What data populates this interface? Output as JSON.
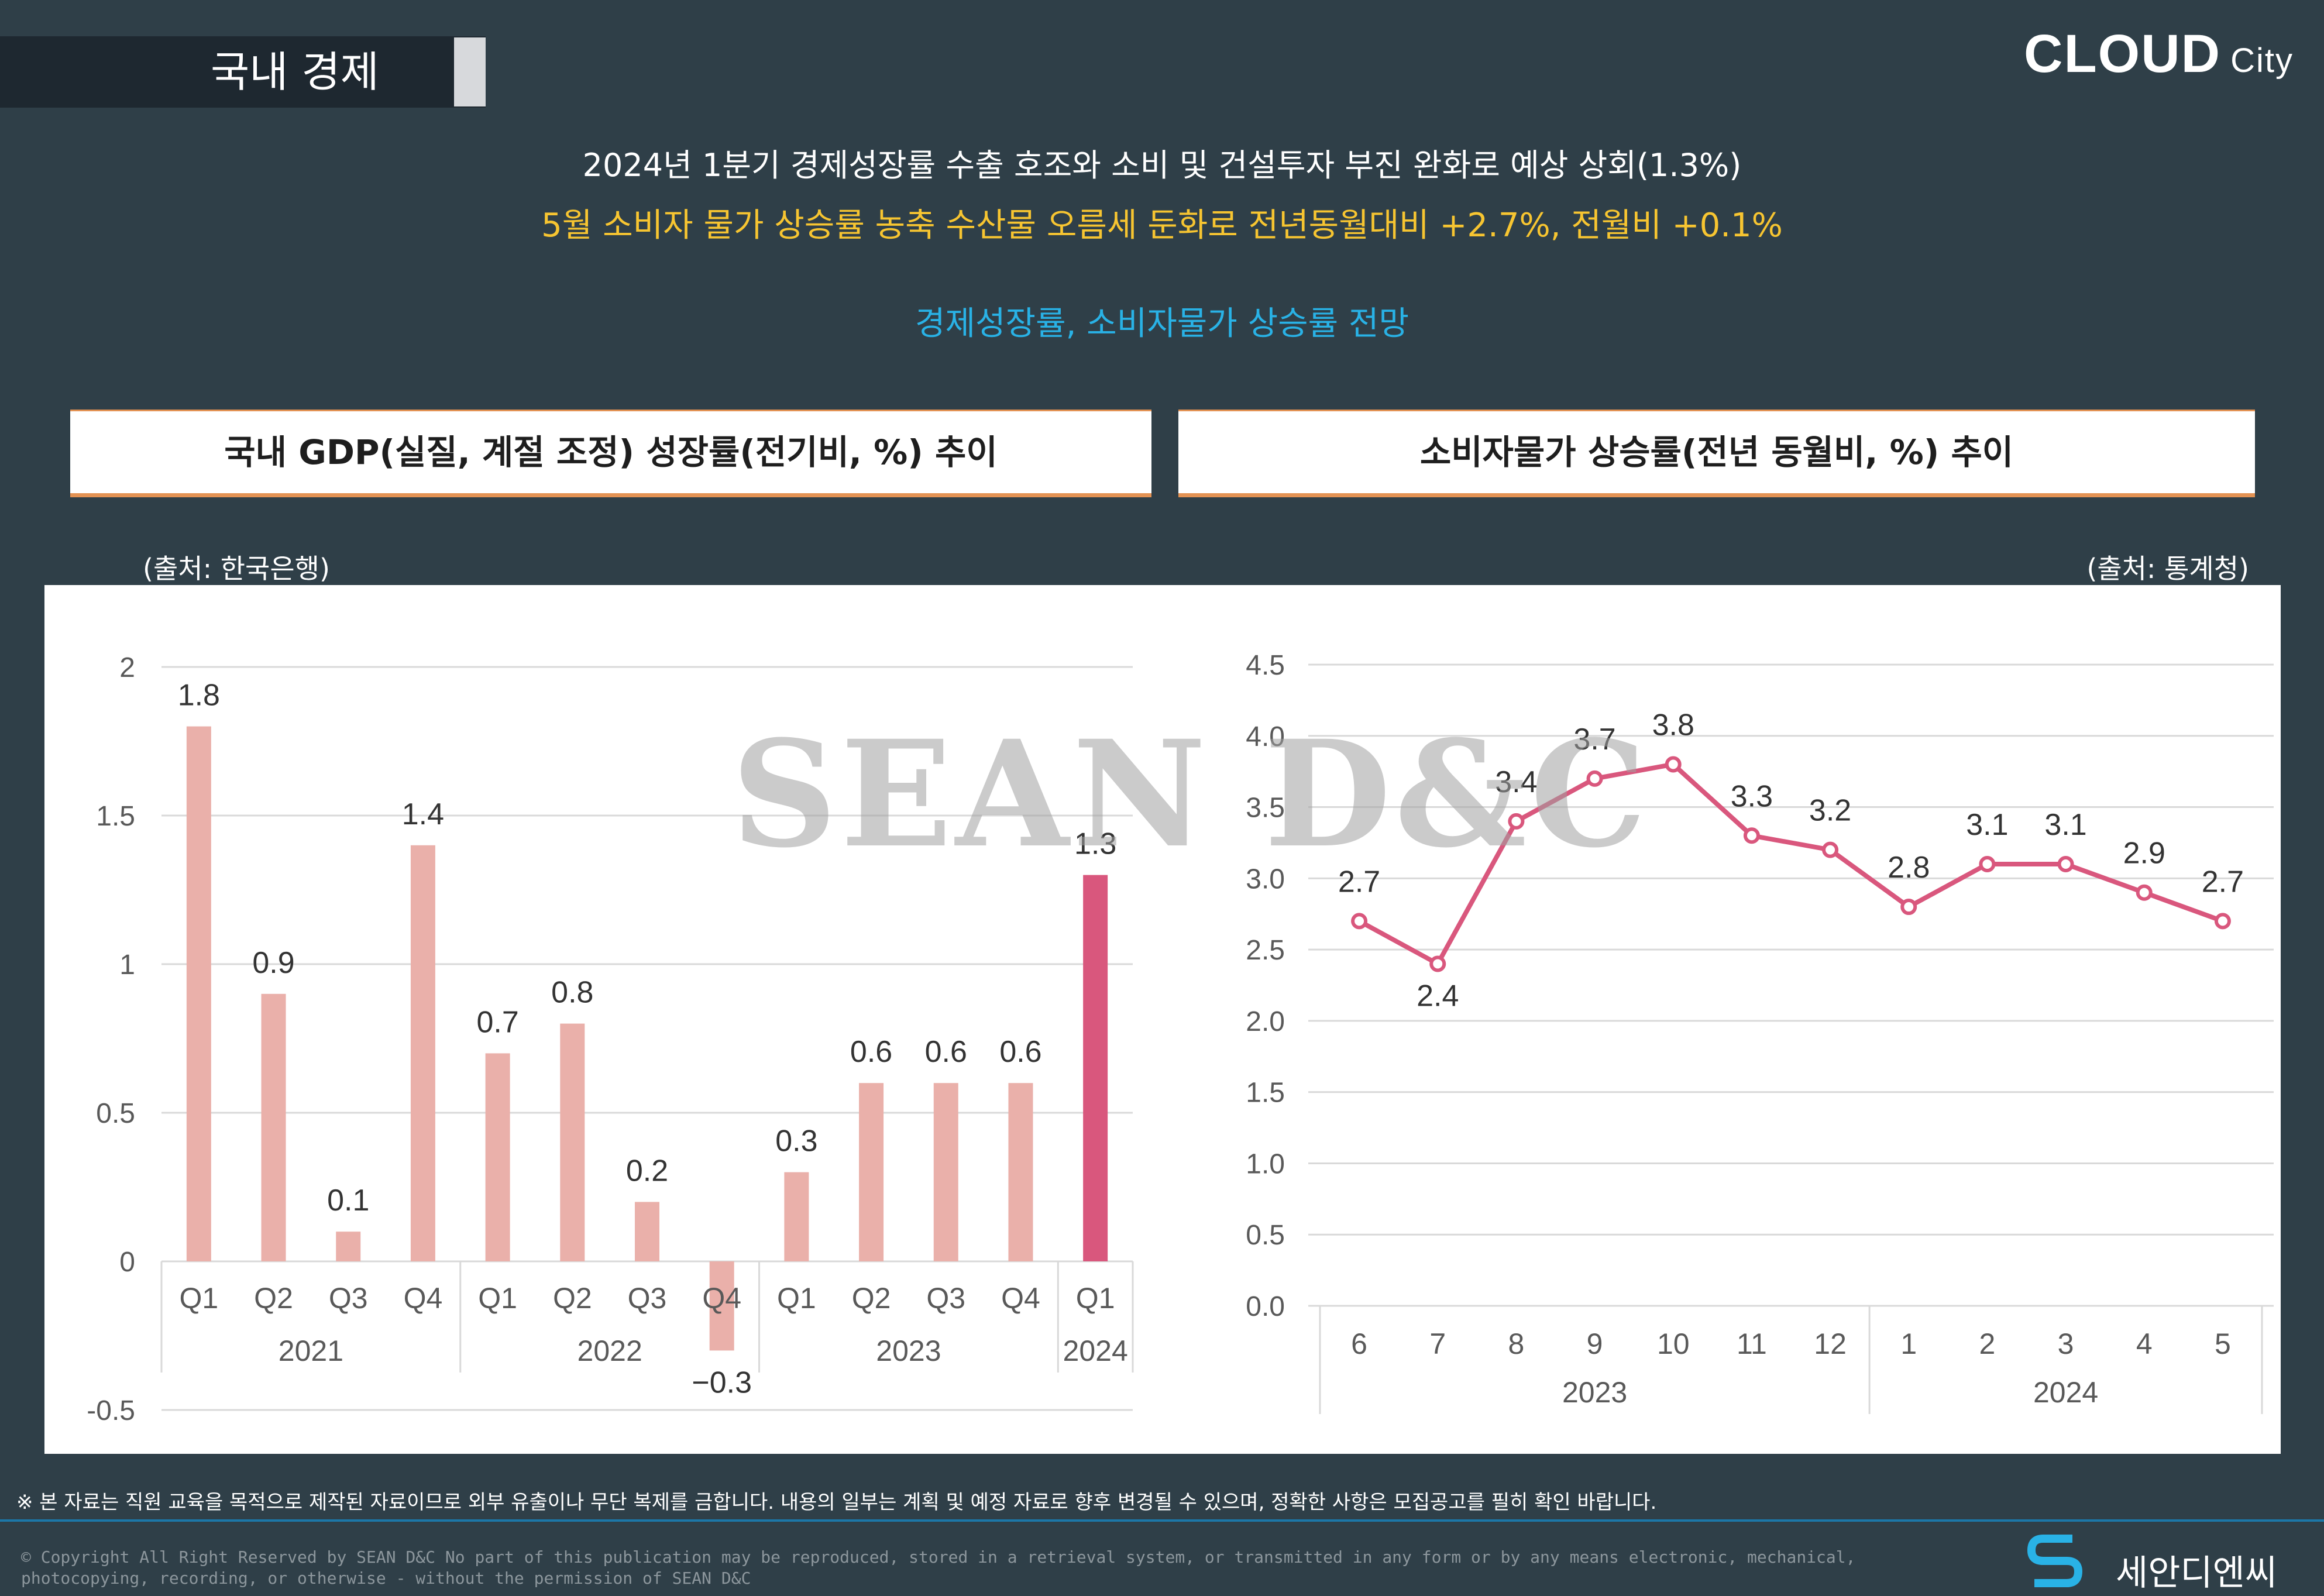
{
  "section_tag": "국내 경제",
  "brand": {
    "main": "CLOUD",
    "sub": "City"
  },
  "headlines": [
    "2024년 1분기 경제성장률 수출 호조와 소비 및 건설투자 부진 완화로 예상 상회(1.3%)",
    "5월 소비자 물가 상승률 농축 수산물 오름세 둔화로 전년동월대비 +2.7%, 전월비 +0.1%",
    "경제성장률, 소비자물가 상승률 전망"
  ],
  "colors": {
    "background": "#2f3f48",
    "bar": "#eab0aa",
    "bar_highlight": "#d9577d",
    "line": "#d9577d",
    "title_border": "#e39253",
    "headline_yellow": "#f7c531",
    "headline_blue": "#29b2e6"
  },
  "panels": {
    "left": {
      "title": "국내 GDP(실질, 계절 조정) 성장률(전기비, %) 추이",
      "source": "(출처: 한국은행)"
    },
    "right": {
      "title": "소비자물가 상승률(전년 동월비, %) 추이",
      "source": "(출처: 통계청)"
    }
  },
  "watermark": "SEAN D&C",
  "chart_data": [
    {
      "type": "bar",
      "categories": [
        "Q1",
        "Q2",
        "Q3",
        "Q4",
        "Q1",
        "Q2",
        "Q3",
        "Q4",
        "Q1",
        "Q2",
        "Q3",
        "Q4",
        "Q1"
      ],
      "groups": [
        {
          "label": "2021",
          "count": 4
        },
        {
          "label": "2022",
          "count": 4
        },
        {
          "label": "2023",
          "count": 4
        },
        {
          "label": "2024",
          "count": 1
        }
      ],
      "values": [
        1.8,
        0.9,
        0.1,
        1.4,
        0.7,
        0.8,
        0.2,
        -0.3,
        0.3,
        0.6,
        0.6,
        0.6,
        1.3
      ],
      "value_labels": [
        "1.8",
        "0.9",
        "0.1",
        "1.4",
        "0.7",
        "0.8",
        "0.2",
        "−0.3",
        "0.3",
        "0.6",
        "0.6",
        "0.6",
        "1.3"
      ],
      "highlight_index": 12,
      "yticks": [
        "2",
        "1.5",
        "1",
        "0.5",
        "0",
        "-0.5"
      ],
      "ytick_values": [
        2,
        1.5,
        1,
        0.5,
        0,
        -0.5
      ],
      "ylim": [
        -0.5,
        2
      ],
      "grid": true
    },
    {
      "type": "line",
      "categories": [
        "6",
        "7",
        "8",
        "9",
        "10",
        "11",
        "12",
        "1",
        "2",
        "3",
        "4",
        "5"
      ],
      "groups": [
        {
          "label": "2023",
          "count": 7
        },
        {
          "label": "2024",
          "count": 5
        }
      ],
      "values": [
        2.7,
        2.4,
        3.4,
        3.7,
        3.8,
        3.3,
        3.2,
        2.8,
        3.1,
        3.1,
        2.9,
        2.7
      ],
      "value_labels": [
        "2.7",
        "2.4",
        "3.4",
        "3.7",
        "3.8",
        "3.3",
        "3.2",
        "2.8",
        "3.1",
        "3.1",
        "2.9",
        "2.7"
      ],
      "yticks": [
        "4.5",
        "4.0",
        "3.5",
        "3.0",
        "2.5",
        "2.0",
        "1.5",
        "1.0",
        "0.5",
        "0.0"
      ],
      "ytick_values": [
        4.5,
        4.0,
        3.5,
        3.0,
        2.5,
        2.0,
        1.5,
        1.0,
        0.5,
        0.0
      ],
      "ylim": [
        0,
        4.5
      ],
      "grid": true
    }
  ],
  "disclaimer": "※ 본 자료는 직원 교육을 목적으로 제작된 자료이므로 외부 유출이나 무단 복제를 금합니다. 내용의 일부는 계획 및 예정 자료로 향후 변경될 수 있으며, 정확한 사항은 모집공고를 필히 확인 바랍니다.",
  "copyright": "© Copyright All Right Reserved by SEAN D&C  No part of this publication may be reproduced, stored in a retrieval system, or transmitted in any form or by any means electronic, mechanical, photocopying, recording, or otherwise - without the permission of SEAN D&C",
  "company_name": "세안디엔씨"
}
